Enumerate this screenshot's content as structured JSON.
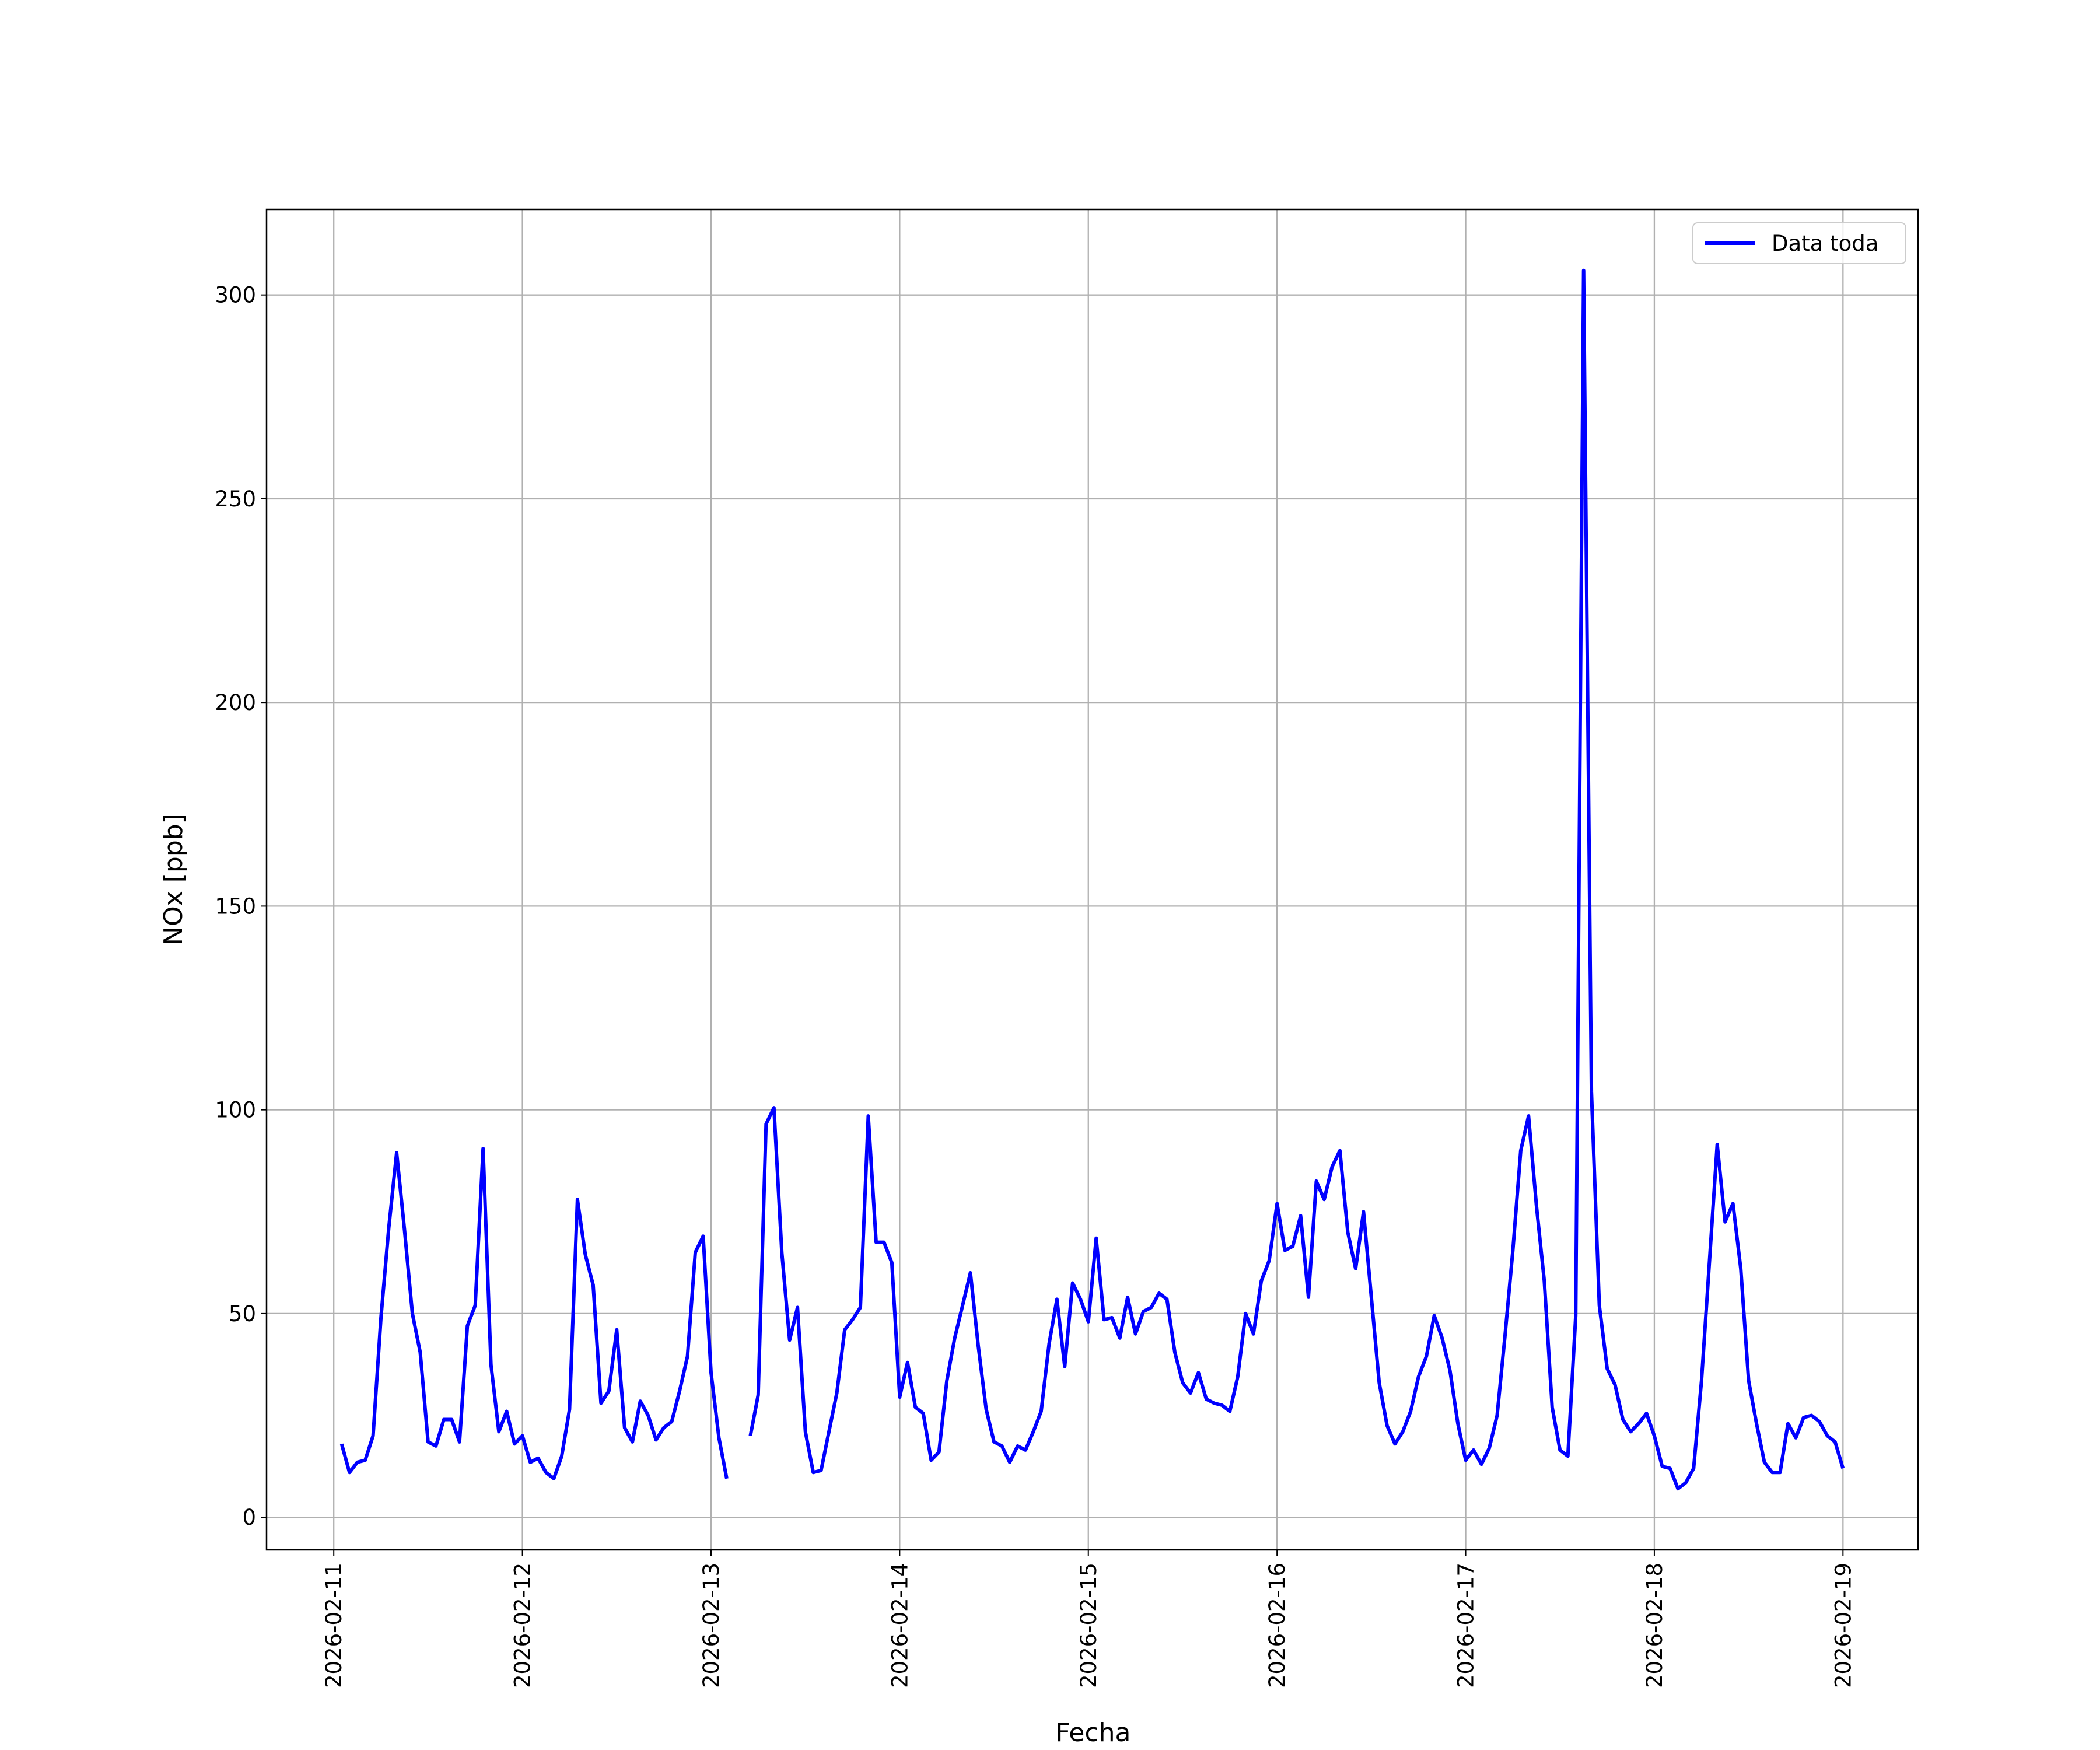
{
  "chart_data": {
    "type": "line",
    "xlabel": "Fecha",
    "ylabel": "NOx [ppb]",
    "x": [
      "2026-02-11 01:00",
      "2026-02-11 02:00",
      "2026-02-11 03:00",
      "2026-02-11 04:00",
      "2026-02-11 05:00",
      "2026-02-11 06:00",
      "2026-02-11 07:00",
      "2026-02-11 08:00",
      "2026-02-11 09:00",
      "2026-02-11 10:00",
      "2026-02-11 11:00",
      "2026-02-11 12:00",
      "2026-02-11 13:00",
      "2026-02-11 14:00",
      "2026-02-11 15:00",
      "2026-02-11 16:00",
      "2026-02-11 17:00",
      "2026-02-11 18:00",
      "2026-02-11 19:00",
      "2026-02-11 20:00",
      "2026-02-11 21:00",
      "2026-02-11 22:00",
      "2026-02-11 23:00",
      "2026-02-12 00:00",
      "2026-02-12 01:00",
      "2026-02-12 02:00",
      "2026-02-12 03:00",
      "2026-02-12 04:00",
      "2026-02-12 05:00",
      "2026-02-12 06:00",
      "2026-02-12 07:00",
      "2026-02-12 08:00",
      "2026-02-12 09:00",
      "2026-02-12 10:00",
      "2026-02-12 11:00",
      "2026-02-12 12:00",
      "2026-02-12 13:00",
      "2026-02-12 14:00",
      "2026-02-12 15:00",
      "2026-02-12 16:00",
      "2026-02-12 17:00",
      "2026-02-12 18:00",
      "2026-02-12 19:00",
      "2026-02-12 20:00",
      "2026-02-12 21:00",
      "2026-02-12 22:00",
      "2026-02-12 23:00",
      "2026-02-13 00:00",
      "2026-02-13 01:00",
      "2026-02-13 02:00",
      "2026-02-13 03:00",
      "2026-02-13 04:00",
      "2026-02-13 05:00",
      "2026-02-13 06:00",
      "2026-02-13 07:00",
      "2026-02-13 08:00",
      "2026-02-13 09:00",
      "2026-02-13 10:00",
      "2026-02-13 11:00",
      "2026-02-13 12:00",
      "2026-02-13 13:00",
      "2026-02-13 14:00",
      "2026-02-13 15:00",
      "2026-02-13 16:00",
      "2026-02-13 17:00",
      "2026-02-13 18:00",
      "2026-02-13 19:00",
      "2026-02-13 20:00",
      "2026-02-13 21:00",
      "2026-02-13 22:00",
      "2026-02-13 23:00",
      "2026-02-14 00:00",
      "2026-02-14 01:00",
      "2026-02-14 02:00",
      "2026-02-14 03:00",
      "2026-02-14 04:00",
      "2026-02-14 05:00",
      "2026-02-14 06:00",
      "2026-02-14 07:00",
      "2026-02-14 08:00",
      "2026-02-14 09:00",
      "2026-02-14 10:00",
      "2026-02-14 11:00",
      "2026-02-14 12:00",
      "2026-02-14 13:00",
      "2026-02-14 14:00",
      "2026-02-14 15:00",
      "2026-02-14 16:00",
      "2026-02-14 17:00",
      "2026-02-14 18:00",
      "2026-02-14 19:00",
      "2026-02-14 20:00",
      "2026-02-14 21:00",
      "2026-02-14 22:00",
      "2026-02-14 23:00",
      "2026-02-15 00:00",
      "2026-02-15 01:00",
      "2026-02-15 02:00",
      "2026-02-15 03:00",
      "2026-02-15 04:00",
      "2026-02-15 05:00",
      "2026-02-15 06:00",
      "2026-02-15 07:00",
      "2026-02-15 08:00",
      "2026-02-15 09:00",
      "2026-02-15 10:00",
      "2026-02-15 11:00",
      "2026-02-15 12:00",
      "2026-02-15 13:00",
      "2026-02-15 14:00",
      "2026-02-15 15:00",
      "2026-02-15 16:00",
      "2026-02-15 17:00",
      "2026-02-15 18:00",
      "2026-02-15 19:00",
      "2026-02-15 20:00",
      "2026-02-15 21:00",
      "2026-02-15 22:00",
      "2026-02-15 23:00",
      "2026-02-16 00:00",
      "2026-02-16 01:00",
      "2026-02-16 02:00",
      "2026-02-16 03:00",
      "2026-02-16 04:00",
      "2026-02-16 05:00",
      "2026-02-16 06:00",
      "2026-02-16 07:00",
      "2026-02-16 08:00",
      "2026-02-16 09:00",
      "2026-02-16 10:00",
      "2026-02-16 11:00",
      "2026-02-16 12:00",
      "2026-02-16 13:00",
      "2026-02-16 14:00",
      "2026-02-16 15:00",
      "2026-02-16 16:00",
      "2026-02-16 17:00",
      "2026-02-16 18:00",
      "2026-02-16 19:00",
      "2026-02-16 20:00",
      "2026-02-16 21:00",
      "2026-02-16 22:00",
      "2026-02-16 23:00",
      "2026-02-17 00:00",
      "2026-02-17 01:00",
      "2026-02-17 02:00",
      "2026-02-17 03:00",
      "2026-02-17 04:00",
      "2026-02-17 05:00",
      "2026-02-17 06:00",
      "2026-02-17 07:00",
      "2026-02-17 08:00",
      "2026-02-17 09:00",
      "2026-02-17 10:00",
      "2026-02-17 11:00",
      "2026-02-17 12:00",
      "2026-02-17 13:00",
      "2026-02-17 14:00",
      "2026-02-17 15:00",
      "2026-02-17 16:00",
      "2026-02-17 17:00",
      "2026-02-17 18:00",
      "2026-02-17 19:00",
      "2026-02-17 20:00",
      "2026-02-17 21:00",
      "2026-02-17 22:00",
      "2026-02-17 23:00",
      "2026-02-18 00:00",
      "2026-02-18 01:00",
      "2026-02-18 02:00",
      "2026-02-18 03:00",
      "2026-02-18 04:00",
      "2026-02-18 05:00",
      "2026-02-18 06:00",
      "2026-02-18 07:00",
      "2026-02-18 08:00",
      "2026-02-18 09:00",
      "2026-02-18 10:00",
      "2026-02-18 11:00",
      "2026-02-18 12:00",
      "2026-02-18 13:00",
      "2026-02-18 14:00",
      "2026-02-18 15:00",
      "2026-02-18 16:00",
      "2026-02-18 17:00",
      "2026-02-18 18:00",
      "2026-02-18 19:00",
      "2026-02-18 20:00",
      "2026-02-18 21:00",
      "2026-02-18 22:00",
      "2026-02-18 23:00",
      "2026-02-19 00:00"
    ],
    "series": [
      {
        "name": "Data toda",
        "color": "#0000ff",
        "values": [
          18,
          11,
          13.5,
          14,
          20,
          49,
          71,
          89.5,
          70.5,
          50,
          40.5,
          18.5,
          17.5,
          24,
          24,
          18.5,
          47,
          52,
          90.5,
          37.5,
          21,
          26,
          18,
          20,
          13.5,
          14.5,
          11,
          9.5,
          15,
          26.5,
          78,
          64.5,
          57,
          28,
          31,
          46,
          22,
          18.5,
          28.5,
          25,
          19,
          22,
          23.5,
          31,
          39.5,
          65,
          69,
          35.5,
          19.5,
          9.5,
          null,
          null,
          20,
          30,
          96.5,
          100.5,
          65,
          43.5,
          51.5,
          21,
          11,
          11.5,
          21,
          30.5,
          46,
          48.5,
          51.5,
          98.5,
          67.5,
          67.5,
          62.5,
          29.5,
          38,
          27,
          25.5,
          14,
          16,
          33.5,
          44,
          52,
          60,
          42,
          26.5,
          18.5,
          17.5,
          13.5,
          17.5,
          16.5,
          21,
          26,
          42.5,
          53.5,
          37,
          57.5,
          53.5,
          48,
          68.5,
          48.5,
          49,
          44,
          54,
          45,
          50.5,
          51.5,
          55,
          53.5,
          40.5,
          33,
          30.5,
          35.5,
          29,
          28,
          27.5,
          26,
          34.5,
          50,
          45,
          58,
          63,
          77,
          65.5,
          66.5,
          74,
          54,
          82.5,
          78,
          86,
          90,
          70,
          61,
          75,
          54,
          33,
          22.5,
          18,
          21,
          26,
          34.5,
          39.5,
          49.5,
          44,
          36,
          23,
          14,
          16.5,
          13,
          17,
          25,
          44.5,
          65.5,
          90,
          98.5,
          76.5,
          58,
          27,
          16.5,
          15,
          49.5,
          306,
          104.5,
          52,
          36.5,
          32.5,
          24,
          21,
          23,
          25.5,
          20,
          12.5,
          12,
          7,
          8.5,
          12,
          33.5,
          62.5,
          91.5,
          72.5,
          77,
          61,
          33.5,
          23,
          13.5,
          11,
          11,
          23,
          19.5,
          24.5,
          25,
          23.5,
          20,
          18.5,
          12
        ]
      }
    ],
    "xlim": [
      "2026-02-10 15:27",
      "2026-02-19 09:33"
    ],
    "xticks": [
      "2026-02-11",
      "2026-02-12",
      "2026-02-13",
      "2026-02-14",
      "2026-02-15",
      "2026-02-16",
      "2026-02-17",
      "2026-02-18",
      "2026-02-19"
    ],
    "ylim": [
      -8,
      321
    ],
    "yticks": [
      0,
      50,
      100,
      150,
      200,
      250,
      300
    ],
    "grid": true,
    "legend": "upper right"
  }
}
